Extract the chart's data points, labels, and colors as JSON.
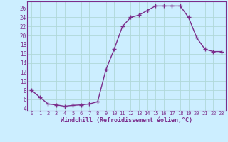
{
  "x": [
    0,
    1,
    2,
    3,
    4,
    5,
    6,
    7,
    8,
    9,
    10,
    11,
    12,
    13,
    14,
    15,
    16,
    17,
    18,
    19,
    20,
    21,
    22,
    23
  ],
  "y": [
    8,
    6.5,
    5,
    4.8,
    4.5,
    4.7,
    4.8,
    5,
    5.5,
    12.5,
    17,
    22,
    24,
    24.5,
    25.5,
    26.5,
    26.5,
    26.5,
    26.5,
    24,
    19.5,
    17,
    16.5,
    16.5
  ],
  "line_color": "#7b2d8b",
  "marker": "+",
  "marker_size": 4,
  "marker_lw": 1.0,
  "bg_color": "#cceeff",
  "grid_color": "#aadddd",
  "tick_color": "#7b2d8b",
  "xlabel": "Windchill (Refroidissement éolien,°C)",
  "xlabel_fontsize": 6.0,
  "xtick_fontsize": 5.0,
  "ytick_fontsize": 5.5,
  "xticks": [
    0,
    1,
    2,
    3,
    4,
    5,
    6,
    7,
    8,
    9,
    10,
    11,
    12,
    13,
    14,
    15,
    16,
    17,
    18,
    19,
    20,
    21,
    22,
    23
  ],
  "yticks": [
    4,
    6,
    8,
    10,
    12,
    14,
    16,
    18,
    20,
    22,
    24,
    26
  ],
  "ylim": [
    3.5,
    27.5
  ],
  "xlim": [
    -0.5,
    23.5
  ],
  "linewidth": 1.0
}
